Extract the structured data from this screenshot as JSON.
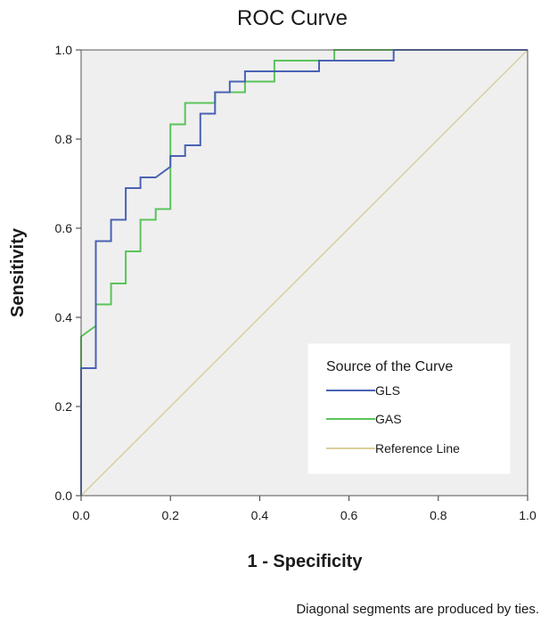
{
  "chart_data": {
    "type": "line",
    "title": "ROC Curve",
    "xlabel": "1 - Specificity",
    "ylabel": "Sensitivity",
    "xlim": [
      0,
      1
    ],
    "ylim": [
      0,
      1
    ],
    "x_ticks": [
      "0.0",
      "0.2",
      "0.4",
      "0.6",
      "0.8",
      "1.0"
    ],
    "y_ticks": [
      "0.0",
      "0.2",
      "0.4",
      "0.6",
      "0.8",
      "1.0"
    ],
    "grid": false,
    "plot_background": "#efefef",
    "legend": {
      "title": "Source of the Curve",
      "position": "bottom-right",
      "entries": [
        "GLS",
        "GAS",
        "Reference Line"
      ]
    },
    "footnote": "Diagonal segments are produced by ties.",
    "series": [
      {
        "name": "GLS",
        "color": "#4a62b4",
        "x": [
          0,
          0,
          0.033,
          0.033,
          0.067,
          0.067,
          0.1,
          0.1,
          0.133,
          0.133,
          0.167,
          0.2,
          0.2,
          0.233,
          0.233,
          0.267,
          0.267,
          0.3,
          0.3,
          0.333,
          0.333,
          0.367,
          0.367,
          0.533,
          0.533,
          0.567,
          0.567,
          0.7,
          0.7,
          1
        ],
        "y": [
          0,
          0.286,
          0.286,
          0.571,
          0.571,
          0.619,
          0.619,
          0.69,
          0.69,
          0.714,
          0.714,
          0.738,
          0.762,
          0.762,
          0.786,
          0.786,
          0.857,
          0.857,
          0.905,
          0.905,
          0.929,
          0.929,
          0.952,
          0.952,
          0.976,
          0.976,
          0.976,
          0.976,
          1,
          1
        ]
      },
      {
        "name": "GAS",
        "color": "#5ac45a",
        "x": [
          0,
          0,
          0.033,
          0.033,
          0.067,
          0.067,
          0.1,
          0.1,
          0.133,
          0.133,
          0.167,
          0.167,
          0.2,
          0.2,
          0.233,
          0.233,
          0.3,
          0.3,
          0.367,
          0.367,
          0.433,
          0.433,
          0.567,
          0.567,
          1
        ],
        "y": [
          0,
          0.357,
          0.381,
          0.429,
          0.429,
          0.476,
          0.476,
          0.548,
          0.548,
          0.619,
          0.619,
          0.643,
          0.643,
          0.833,
          0.833,
          0.881,
          0.881,
          0.905,
          0.905,
          0.929,
          0.929,
          0.976,
          0.976,
          1,
          1
        ]
      },
      {
        "name": "Reference Line",
        "color": "#d9cf9e",
        "x": [
          0,
          1
        ],
        "y": [
          0,
          1
        ]
      }
    ]
  }
}
